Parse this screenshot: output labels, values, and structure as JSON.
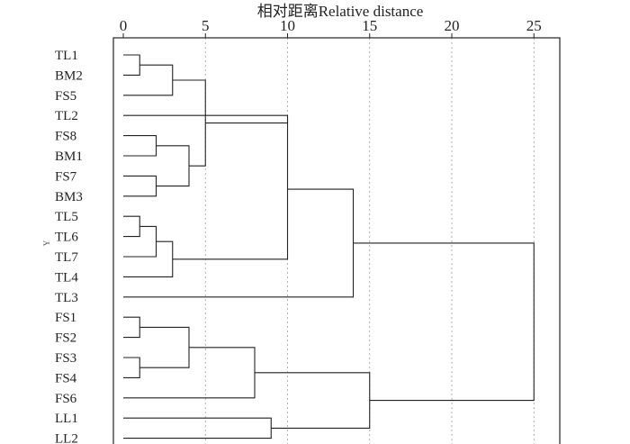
{
  "chart_data": {
    "type": "dendrogram",
    "title": "相对距离Relative distance",
    "ylabel": "Y",
    "xlim": [
      0,
      26
    ],
    "x_ticks": [
      0,
      5,
      10,
      15,
      20,
      25
    ],
    "grid": {
      "vertical_dashed": true
    },
    "leaves": [
      "TL1",
      "BM2",
      "FS5",
      "TL2",
      "FS8",
      "BM1",
      "FS7",
      "BM3",
      "TL5",
      "TL6",
      "TL7",
      "TL4",
      "TL3",
      "FS1",
      "FS2",
      "FS3",
      "FS4",
      "FS6",
      "LL1",
      "LL2"
    ],
    "merges": [
      {
        "a": "TL1",
        "b": "BM2",
        "distance": 1.0
      },
      {
        "a": "TL5",
        "b": "TL6",
        "distance": 1.0
      },
      {
        "a": "FS1",
        "b": "FS2",
        "distance": 1.0
      },
      {
        "a": "FS3",
        "b": "FS4",
        "distance": 1.0
      },
      {
        "a": "FS8",
        "b": "BM1",
        "distance": 2.0
      },
      {
        "a": "FS7",
        "b": "BM3",
        "distance": 2.0
      },
      {
        "a": "m2",
        "b": "TL7",
        "distance": 2.0
      },
      {
        "a": "m1",
        "b": "FS5",
        "distance": 3.0
      },
      {
        "a": "m7",
        "b": "TL4",
        "distance": 3.0
      },
      {
        "a": "m5",
        "b": "m6",
        "distance": 4.0
      },
      {
        "a": "m3",
        "b": "m4",
        "distance": 4.0
      },
      {
        "a": "m8",
        "b": "m10",
        "distance": 5.0
      },
      {
        "a": "m11",
        "b": "FS6",
        "distance": 8.0
      },
      {
        "a": "LL1",
        "b": "LL2",
        "distance": 9.0
      },
      {
        "a": "m12",
        "b": "TL2",
        "distance": 10.0
      },
      {
        "a": "m15",
        "b": "m9",
        "distance": 10.0
      },
      {
        "a": "m16",
        "b": "TL3",
        "distance": 14.0
      },
      {
        "a": "m13",
        "b": "m14",
        "distance": 15.0
      },
      {
        "a": "m17",
        "b": "m18",
        "distance": 25.0
      }
    ]
  }
}
